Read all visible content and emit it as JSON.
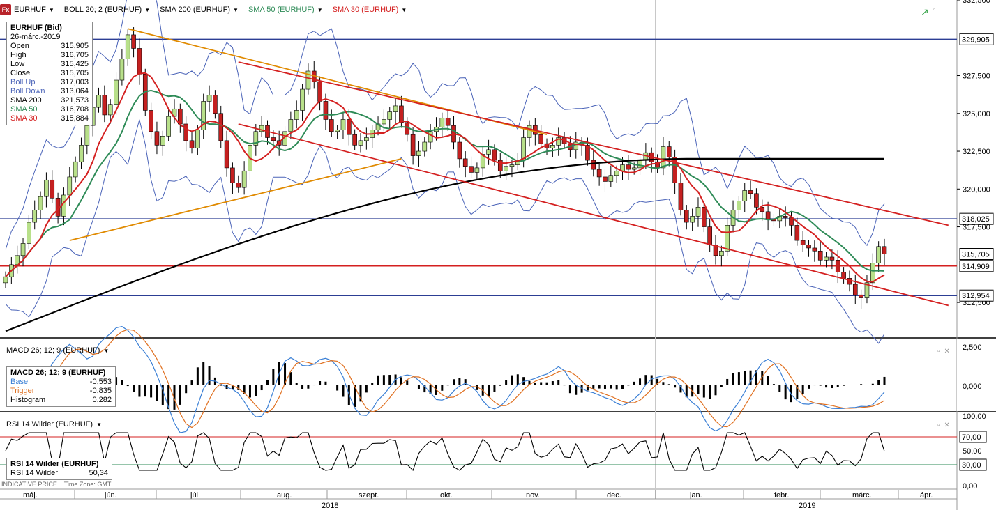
{
  "toolbar": {
    "symbol": "EURHUF",
    "boll": "BOLL 20; 2 (EURHUF)",
    "sma200": "SMA 200 (EURHUF)",
    "sma50": "SMA 50 (EURHUF)",
    "sma30": "SMA 30 (EURHUF)",
    "colors": {
      "boll": "#4a63b8",
      "sma200": "#000000",
      "sma50": "#2e8b57",
      "sma30": "#d42020"
    }
  },
  "info": {
    "title": "EURHUF (Bid)",
    "date": "26-márc.-2019",
    "rows": [
      {
        "label": "Open",
        "value": "315,905",
        "color": "#000000"
      },
      {
        "label": "High",
        "value": "316,705",
        "color": "#000000"
      },
      {
        "label": "Low",
        "value": "315,425",
        "color": "#000000"
      },
      {
        "label": "Close",
        "value": "315,705",
        "color": "#000000"
      },
      {
        "label": "Boll Up",
        "value": "317,003",
        "color": "#4a63b8"
      },
      {
        "label": "Boll Down",
        "value": "313,064",
        "color": "#4a63b8"
      },
      {
        "label": "SMA 200",
        "value": "321,573",
        "color": "#000000"
      },
      {
        "label": "SMA 50",
        "value": "316,708",
        "color": "#2e8b57"
      },
      {
        "label": "SMA 30",
        "value": "315,884",
        "color": "#d42020"
      }
    ]
  },
  "macd": {
    "label": "MACD 26; 12; 9 (EURHUF)",
    "title": "MACD 26; 12; 9 (EURHUF)",
    "rows": [
      {
        "label": "Base",
        "value": "-0,553",
        "color": "#3a7fd5"
      },
      {
        "label": "Trigger",
        "value": "-0,835",
        "color": "#e07020"
      },
      {
        "label": "Histogram",
        "value": "0,282",
        "color": "#000000"
      }
    ],
    "ticks": [
      "2,500",
      "0,000"
    ]
  },
  "rsi": {
    "label": "RSI 14 Wilder (EURHUF)",
    "title": "RSI 14 Wilder (EURHUF)",
    "row": {
      "label": "RSI 14 Wilder",
      "value": "50,34"
    },
    "ticks": [
      "100,00",
      "50,00",
      "0,00"
    ],
    "levels": [
      "70,00",
      "30,00"
    ]
  },
  "footer": {
    "indicative": "INDICATIVE PRICE",
    "timezone": "Time Zone: GMT"
  },
  "chart_data": {
    "type": "line",
    "symbol": "EURHUF",
    "months": [
      "máj.",
      "jún.",
      "júl.",
      "aug.",
      "szept.",
      "okt.",
      "nov.",
      "dec.",
      "jan.",
      "febr.",
      "márc.",
      "ápr."
    ],
    "years": [
      "2018",
      "2019"
    ],
    "price_ticks": [
      "332,500",
      "327,500",
      "325,000",
      "322,500",
      "320,000",
      "317,500",
      "312,500"
    ],
    "price_range": [
      310.2,
      332.5
    ],
    "hlines": [
      {
        "value": "329,905",
        "color": "#2c3e94"
      },
      {
        "value": "318,025",
        "color": "#2c3e94"
      },
      {
        "value": "314,909",
        "color": "#d42020"
      },
      {
        "value": "312,954",
        "color": "#2c3e94"
      }
    ],
    "last_price": "315,705",
    "closes": [
      314.2,
      315.0,
      315.6,
      316.4,
      317.8,
      318.6,
      319.5,
      320.6,
      319.4,
      318.2,
      319.6,
      320.8,
      321.8,
      322.9,
      324.2,
      325.4,
      326.2,
      324.9,
      325.6,
      327.2,
      328.6,
      330.2,
      329.3,
      327.6,
      325.2,
      323.8,
      322.9,
      323.5,
      324.8,
      325.3,
      324.3,
      323.2,
      322.7,
      323.9,
      325.8,
      326.2,
      325.0,
      323.2,
      321.4,
      320.4,
      320.1,
      321.2,
      322.9,
      323.8,
      324.2,
      323.4,
      323.2,
      322.9,
      323.8,
      324.6,
      325.2,
      326.6,
      327.8,
      327.1,
      325.8,
      324.6,
      323.8,
      323.9,
      324.6,
      323.6,
      322.9,
      323.2,
      323.4,
      323.9,
      324.3,
      324.6,
      325.1,
      325.5,
      324.4,
      323.6,
      322.2,
      322.5,
      323.1,
      323.8,
      324.1,
      324.7,
      324.2,
      323.1,
      322.0,
      321.5,
      321.1,
      321.4,
      322.3,
      322.6,
      321.9,
      321.2,
      321.5,
      321.6,
      321.9,
      323.4,
      324.2,
      323.6,
      323.0,
      322.7,
      322.9,
      323.4,
      323.0,
      322.6,
      323.1,
      322.9,
      321.9,
      321.3,
      320.8,
      320.5,
      320.9,
      321.2,
      321.6,
      321.3,
      321.4,
      321.9,
      322.4,
      321.8,
      321.4,
      322.8,
      322.1,
      320.4,
      318.6,
      317.8,
      318.2,
      318.8,
      317.5,
      316.3,
      315.6,
      315.9,
      317.6,
      318.6,
      319.2,
      319.9,
      319.7,
      318.8,
      318.5,
      318.0,
      317.9,
      318.2,
      318.1,
      317.6,
      316.6,
      316.3,
      316.1,
      315.9,
      315.3,
      315.5,
      315.3,
      314.5,
      314.1,
      313.7,
      313.0,
      312.8,
      313.8,
      315.1,
      316.2,
      315.7
    ],
    "pane1_hint": "candlesticks with Bollinger bands and SMAs"
  }
}
